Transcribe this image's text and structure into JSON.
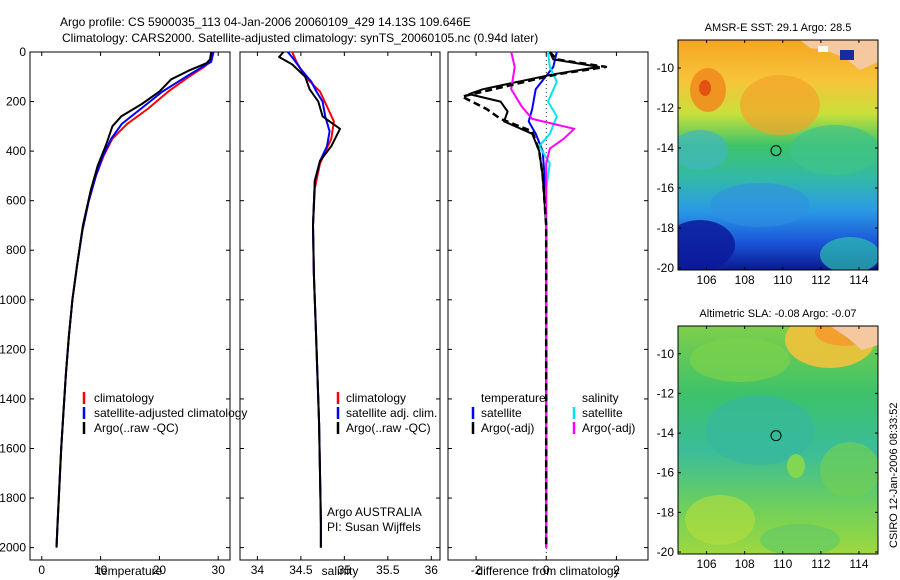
{
  "header": {
    "line1": "Argo profile: CS 5900035_113 04-Jan-2006 20060109_429 14.13S 109.646E",
    "line2": "Climatology: CARS2000. Satellite-adjusted climatology: synTS_20060105.nc (0.94d later)"
  },
  "side_label": "CSIRO 12-Jan-2006 08:33:52",
  "colors": {
    "climatology": "#ff0000",
    "satellite": "#0000ff",
    "argo": "#000000",
    "sat_salinity": "#00e5ee",
    "argo_adj_salinity": "#ff00ff"
  },
  "chart_data": [
    {
      "id": "temperature",
      "type": "line",
      "xlabel": "temperature",
      "ylabel": "",
      "xlim": [
        -2,
        32
      ],
      "ylim": [
        2050,
        0
      ],
      "xticks": [
        0,
        10,
        20,
        30
      ],
      "yticks": [
        0,
        200,
        400,
        600,
        800,
        1000,
        1200,
        1400,
        1600,
        1800,
        2000
      ],
      "legend": [
        "climatology",
        "satellite-adjusted climatology",
        "Argo(..raw -QC)"
      ],
      "series": [
        {
          "name": "climatology",
          "color": "#ff0000",
          "points": [
            [
              29,
              0
            ],
            [
              28.6,
              40
            ],
            [
              27.6,
              60
            ],
            [
              25,
              100
            ],
            [
              21.5,
              160
            ],
            [
              18,
              230
            ],
            [
              14.5,
              290
            ],
            [
              12,
              350
            ],
            [
              10.5,
              420
            ],
            [
              9.2,
              500
            ],
            [
              8,
              600
            ],
            [
              6.9,
              720
            ],
            [
              6,
              860
            ],
            [
              5.2,
              1000
            ],
            [
              4.6,
              1150
            ],
            [
              4.1,
              1300
            ],
            [
              3.7,
              1450
            ],
            [
              3.3,
              1600
            ],
            [
              3,
              1750
            ],
            [
              2.7,
              1900
            ],
            [
              2.5,
              2000
            ]
          ]
        },
        {
          "name": "satellite",
          "color": "#0000ff",
          "points": [
            [
              29.2,
              0
            ],
            [
              28.8,
              40
            ],
            [
              27.3,
              60
            ],
            [
              24.5,
              100
            ],
            [
              20.5,
              160
            ],
            [
              16.8,
              230
            ],
            [
              13.6,
              290
            ],
            [
              11.8,
              350
            ],
            [
              10.4,
              420
            ],
            [
              9.2,
              500
            ],
            [
              8,
              600
            ],
            [
              6.9,
              720
            ],
            [
              6,
              860
            ],
            [
              5.2,
              1000
            ],
            [
              4.6,
              1150
            ],
            [
              4.1,
              1300
            ],
            [
              3.7,
              1450
            ],
            [
              3.3,
              1600
            ],
            [
              3,
              1750
            ],
            [
              2.7,
              1900
            ],
            [
              2.5,
              2000
            ]
          ]
        },
        {
          "name": "argo",
          "color": "#000000",
          "points": [
            [
              28.8,
              0
            ],
            [
              28.6,
              30
            ],
            [
              28,
              45
            ],
            [
              25,
              75
            ],
            [
              22,
              110
            ],
            [
              20,
              160
            ],
            [
              17,
              210
            ],
            [
              13.5,
              260
            ],
            [
              12,
              300
            ],
            [
              11,
              370
            ],
            [
              9.5,
              460
            ],
            [
              8.3,
              560
            ],
            [
              7,
              700
            ],
            [
              6,
              860
            ],
            [
              5.2,
              1000
            ],
            [
              4.6,
              1150
            ],
            [
              4.1,
              1300
            ],
            [
              3.7,
              1450
            ],
            [
              3.3,
              1600
            ],
            [
              3,
              1750
            ],
            [
              2.7,
              1900
            ],
            [
              2.5,
              2000
            ]
          ]
        }
      ]
    },
    {
      "id": "salinity",
      "type": "line",
      "xlabel": "salinity",
      "xlim": [
        33.8,
        36.1
      ],
      "ylim": [
        2050,
        0
      ],
      "xticks": [
        34,
        34.5,
        35,
        35.5,
        36
      ],
      "legend": [
        "climatology",
        "satellite adj. clim.",
        "Argo(..raw -QC)"
      ],
      "annotation1": "Argo AUSTRALIA",
      "annotation2": "PI: Susan Wijffels",
      "series": [
        {
          "name": "climatology",
          "color": "#ff0000",
          "points": [
            [
              34.4,
              0
            ],
            [
              34.45,
              40
            ],
            [
              34.55,
              100
            ],
            [
              34.72,
              160
            ],
            [
              34.8,
              220
            ],
            [
              34.88,
              280
            ],
            [
              34.85,
              350
            ],
            [
              34.72,
              450
            ],
            [
              34.66,
              550
            ],
            [
              34.64,
              700
            ],
            [
              34.65,
              900
            ],
            [
              34.67,
              1100
            ],
            [
              34.69,
              1300
            ],
            [
              34.71,
              1500
            ],
            [
              34.72,
              1700
            ],
            [
              34.73,
              1900
            ],
            [
              34.73,
              2000
            ]
          ]
        },
        {
          "name": "satellite",
          "color": "#0000ff",
          "points": [
            [
              34.35,
              0
            ],
            [
              34.42,
              30
            ],
            [
              34.5,
              70
            ],
            [
              34.62,
              120
            ],
            [
              34.68,
              160
            ],
            [
              34.75,
              200
            ],
            [
              34.78,
              260
            ],
            [
              34.83,
              320
            ],
            [
              34.8,
              380
            ],
            [
              34.72,
              440
            ],
            [
              34.66,
              520
            ],
            [
              34.64,
              700
            ],
            [
              34.65,
              900
            ],
            [
              34.67,
              1100
            ],
            [
              34.69,
              1300
            ],
            [
              34.71,
              1500
            ],
            [
              34.72,
              1700
            ],
            [
              34.73,
              1900
            ],
            [
              34.73,
              2000
            ]
          ]
        },
        {
          "name": "argo",
          "color": "#000000",
          "points": [
            [
              34.3,
              0
            ],
            [
              34.25,
              20
            ],
            [
              34.4,
              50
            ],
            [
              34.55,
              100
            ],
            [
              34.6,
              150
            ],
            [
              34.7,
              200
            ],
            [
              34.75,
              260
            ],
            [
              34.95,
              310
            ],
            [
              34.85,
              380
            ],
            [
              34.72,
              440
            ],
            [
              34.66,
              520
            ],
            [
              34.64,
              700
            ],
            [
              34.65,
              900
            ],
            [
              34.67,
              1100
            ],
            [
              34.69,
              1300
            ],
            [
              34.71,
              1500
            ],
            [
              34.72,
              1700
            ],
            [
              34.73,
              1900
            ],
            [
              34.73,
              2000
            ]
          ]
        }
      ]
    },
    {
      "id": "difference",
      "type": "line",
      "xlabel": "difference from climatology",
      "xlim": [
        -2.8,
        2.9
      ],
      "ylim": [
        2050,
        0
      ],
      "xticks": [
        -2,
        0,
        2
      ],
      "legend_temperature": "temperature",
      "legend_salinity": "salinity",
      "legend_satellite_t": "satellite",
      "legend_argo_t": "Argo(-adj)",
      "legend_satellite_s": "satellite",
      "legend_argo_s": "Argo(-adj)",
      "series": [
        {
          "name": "temperature satellite",
          "color": "#0000ff",
          "points": [
            [
              0.3,
              0
            ],
            [
              0.2,
              60
            ],
            [
              -0.3,
              150
            ],
            [
              -0.4,
              230
            ],
            [
              -0.5,
              280
            ],
            [
              -0.3,
              330
            ],
            [
              -0.1,
              400
            ],
            [
              -0.05,
              500
            ],
            [
              0,
              700
            ],
            [
              0,
              1000
            ],
            [
              0,
              1500
            ],
            [
              0,
              2000
            ]
          ]
        },
        {
          "name": "temperature argo",
          "color": "#000000",
          "points": [
            [
              0.1,
              0
            ],
            [
              0.2,
              30
            ],
            [
              1.5,
              60
            ],
            [
              0.2,
              90
            ],
            [
              -1.8,
              150
            ],
            [
              -2.2,
              170
            ],
            [
              -1.3,
              200
            ],
            [
              -1.1,
              240
            ],
            [
              -1.2,
              280
            ],
            [
              -0.4,
              330
            ],
            [
              -0.2,
              400
            ],
            [
              -0.1,
              500
            ],
            [
              0,
              700
            ],
            [
              0,
              1000
            ],
            [
              0,
              1500
            ],
            [
              0,
              2000
            ]
          ]
        },
        {
          "name": "salinity satellite",
          "color": "#00e5ee",
          "points": [
            [
              0.05,
              0
            ],
            [
              0.1,
              60
            ],
            [
              0.3,
              120
            ],
            [
              0.05,
              200
            ],
            [
              0.3,
              260
            ],
            [
              0.1,
              330
            ],
            [
              -0.2,
              380
            ],
            [
              0.1,
              450
            ],
            [
              0,
              550
            ],
            [
              0,
              700
            ],
            [
              0,
              1000
            ],
            [
              0,
              1500
            ],
            [
              0,
              2000
            ]
          ]
        },
        {
          "name": "salinity argo",
          "color": "#ff00ff",
          "points": [
            [
              -1.0,
              0
            ],
            [
              -0.9,
              60
            ],
            [
              -1.0,
              150
            ],
            [
              -0.7,
              220
            ],
            [
              -0.4,
              270
            ],
            [
              0.8,
              310
            ],
            [
              0.5,
              350
            ],
            [
              0.1,
              390
            ],
            [
              0,
              450
            ],
            [
              0,
              550
            ],
            [
              0,
              700
            ],
            [
              0,
              1000
            ],
            [
              0,
              1500
            ],
            [
              0,
              2000
            ]
          ]
        },
        {
          "name": "temperature argo dashed",
          "color": "#000000",
          "dashed": true,
          "points": [
            [
              0.1,
              0
            ],
            [
              0.3,
              30
            ],
            [
              1.7,
              60
            ],
            [
              0.3,
              90
            ],
            [
              -1.5,
              150
            ],
            [
              -2.4,
              180
            ],
            [
              -1.7,
              230
            ],
            [
              -1.3,
              270
            ],
            [
              -0.4,
              320
            ],
            [
              -0.2,
              400
            ],
            [
              -0.1,
              500
            ],
            [
              0,
              700
            ],
            [
              0,
              1000
            ],
            [
              0,
              1500
            ],
            [
              0,
              2000
            ]
          ]
        }
      ]
    },
    {
      "id": "sst_map",
      "type": "heatmap",
      "title": "AMSR-E SST: 29.1  Argo: 28.5",
      "xlim": [
        104.5,
        115
      ],
      "ylim": [
        -20.1,
        -8.6
      ],
      "xticks": [
        106,
        108,
        110,
        112,
        114
      ],
      "yticks": [
        -10,
        -12,
        -14,
        -16,
        -18,
        -20
      ],
      "argo_position": [
        109.646,
        -14.13
      ]
    },
    {
      "id": "sla_map",
      "type": "heatmap",
      "title": "Altimetric SLA: -0.08  Argo: -0.07",
      "xlim": [
        104.5,
        115
      ],
      "ylim": [
        -20.1,
        -8.6
      ],
      "xticks": [
        106,
        108,
        110,
        112,
        114
      ],
      "yticks": [
        -10,
        -12,
        -14,
        -16,
        -18,
        -20
      ],
      "argo_position": [
        109.646,
        -14.13
      ]
    }
  ]
}
